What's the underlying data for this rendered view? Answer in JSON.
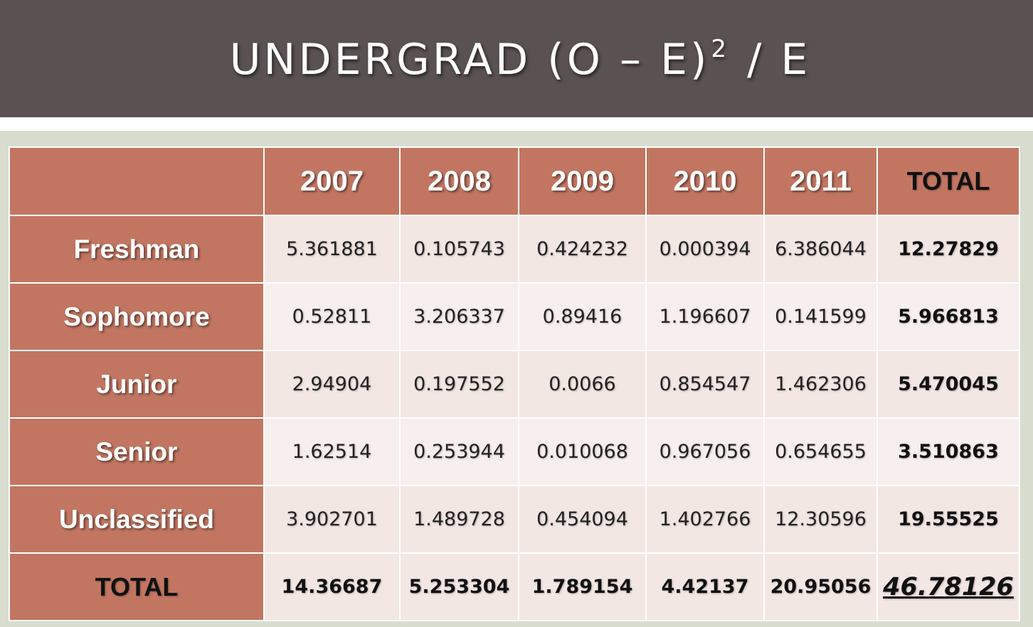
{
  "title": {
    "prefix": "UNDERGRAD (O – E)",
    "superscript": "2",
    "suffix": " / E"
  },
  "table": {
    "columns": [
      "2007",
      "2008",
      "2009",
      "2010",
      "2011",
      "TOTAL"
    ],
    "rows": [
      {
        "label": "Freshman",
        "values": [
          "5.361881",
          "0.105743",
          "0.424232",
          "0.000394",
          "6.386044"
        ],
        "total": "12.27829"
      },
      {
        "label": "Sophomore",
        "values": [
          "0.52811",
          "3.206337",
          "0.89416",
          "1.196607",
          "0.141599"
        ],
        "total": "5.966813"
      },
      {
        "label": "Junior",
        "values": [
          "2.94904",
          "0.197552",
          "0.0066",
          "0.854547",
          "1.462306"
        ],
        "total": "5.470045"
      },
      {
        "label": "Senior",
        "values": [
          "1.62514",
          "0.253944",
          "0.010068",
          "0.967056",
          "0.654655"
        ],
        "total": "3.510863"
      },
      {
        "label": "Unclassified",
        "values": [
          "3.902701",
          "1.489728",
          "0.454094",
          "1.402766",
          "12.30596"
        ],
        "total": "19.55525"
      }
    ],
    "total_row": {
      "label": "TOTAL",
      "values": [
        "14.36687",
        "5.253304",
        "1.789154",
        "4.42137",
        "20.95056"
      ],
      "grand_total": "46.78126"
    }
  },
  "colors": {
    "title_bar": "#595152",
    "header_fill": "#c27662",
    "cell_fill": "#f3e7e4",
    "panel": "#d8ddd0"
  }
}
